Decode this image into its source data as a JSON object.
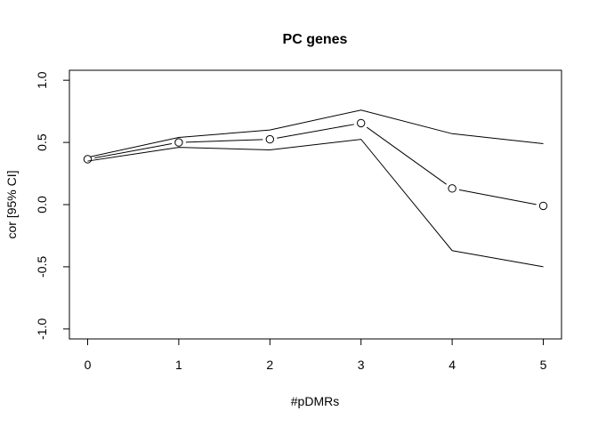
{
  "chart_data": {
    "type": "line",
    "title": "PC genes",
    "xlabel": "#pDMRs",
    "ylabel": "cor [95% CI]",
    "x": [
      0,
      1,
      2,
      3,
      4,
      5
    ],
    "xticks": [
      "0",
      "1",
      "2",
      "3",
      "4",
      "5"
    ],
    "yticks": [
      "-1.0",
      "-0.5",
      "0.0",
      "0.5",
      "1.0"
    ],
    "xlim": [
      -0.2,
      5.2
    ],
    "ylim": [
      -1.08,
      1.08
    ],
    "grid": false,
    "legend": "none",
    "series": [
      {
        "role": "upper",
        "values": [
          0.38,
          0.54,
          0.6,
          0.76,
          0.57,
          0.49
        ],
        "markers": false
      },
      {
        "role": "estimate",
        "values": [
          0.365,
          0.5,
          0.525,
          0.655,
          0.13,
          -0.01
        ],
        "markers": true
      },
      {
        "role": "lower",
        "values": [
          0.35,
          0.46,
          0.44,
          0.525,
          -0.37,
          -0.5
        ],
        "markers": false
      }
    ]
  }
}
